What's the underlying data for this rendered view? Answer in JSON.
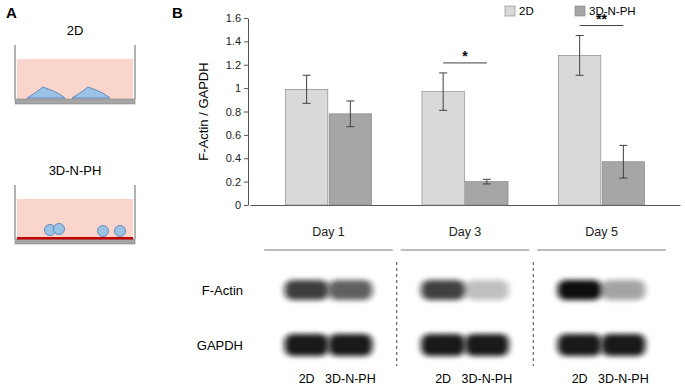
{
  "chart_data": {
    "type": "bar",
    "y_label": "F-Actin / GAPDH",
    "categories": [
      "Day 1",
      "Day 3",
      "Day 5"
    ],
    "series": [
      {
        "name": "2D",
        "color": "#d9d9d9",
        "values": [
          0.99,
          0.97,
          1.28
        ],
        "errors": [
          0.12,
          0.16,
          0.17
        ]
      },
      {
        "name": "3D-N-PH",
        "color": "#a6a6a6",
        "values": [
          0.78,
          0.2,
          0.37
        ],
        "errors": [
          0.11,
          0.02,
          0.14
        ]
      }
    ],
    "ylim": [
      0,
      1.6
    ],
    "yticks": [
      0,
      0.2,
      0.4,
      0.6,
      0.8,
      1,
      1.2,
      1.4,
      1.6
    ],
    "legend": "upper right",
    "annotations": [
      {
        "text": "*",
        "category": "Day 3"
      },
      {
        "text": "**",
        "category": "Day 5"
      }
    ]
  },
  "figure": {
    "panel_labels": [
      "A",
      "B"
    ],
    "schematic": {
      "wells": [
        "2D",
        "3D-N-PH"
      ]
    },
    "blot": {
      "rows": [
        "F-Actin",
        "GAPDH"
      ],
      "lane_labels": [
        "2D",
        "3D-N-PH",
        "2D",
        "3D-N-PH",
        "2D",
        "3D-N-PH"
      ]
    }
  }
}
